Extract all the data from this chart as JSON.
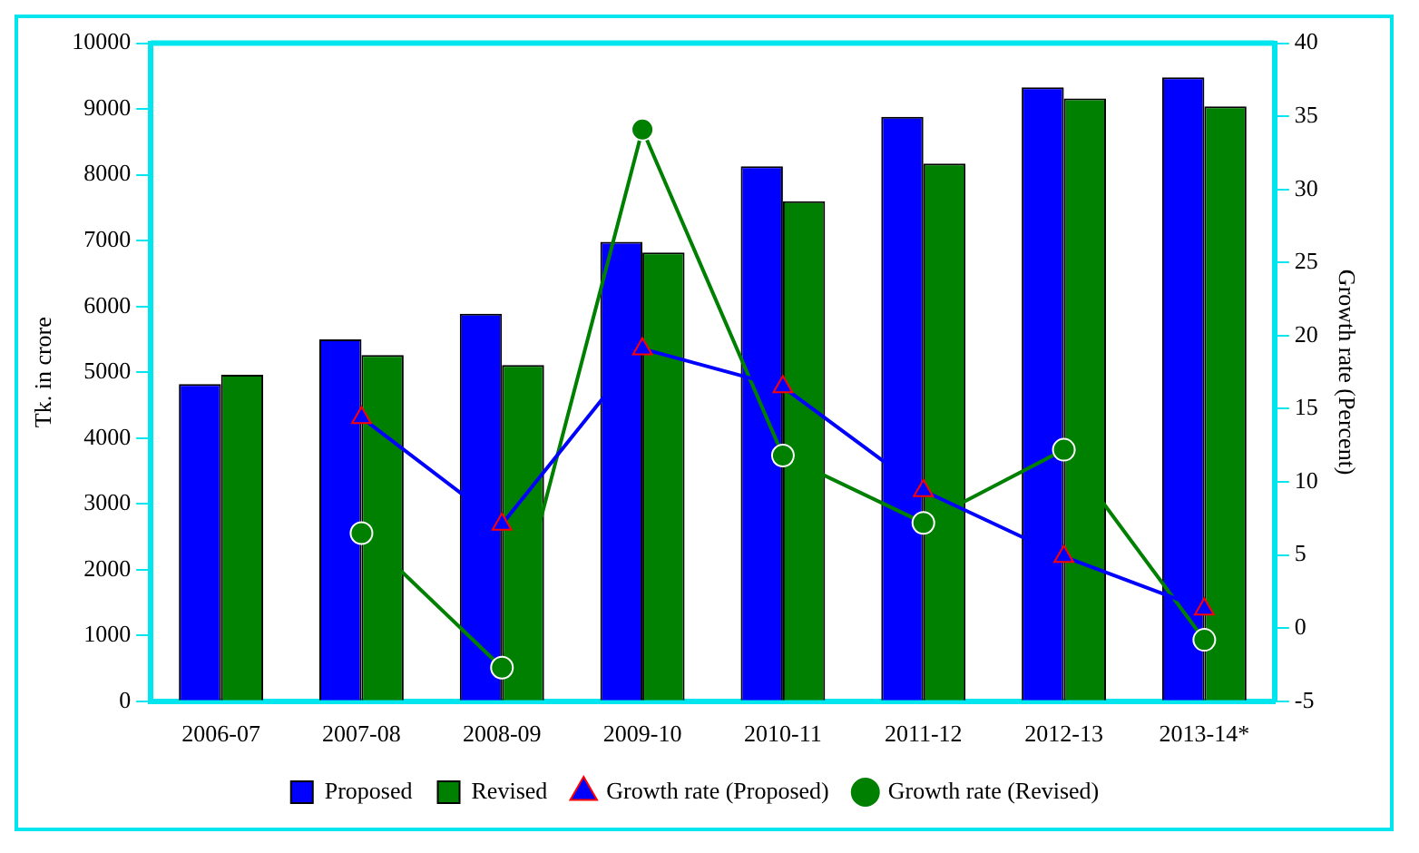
{
  "chart_data": {
    "type": "bar",
    "ylabel": "Tk. in crore",
    "y2label": "Growth rate (Percent)",
    "categories": [
      "2006-07",
      "2007-08",
      "2008-09",
      "2009-10",
      "2010-11",
      "2011-12",
      "2012-13",
      "2013-14*"
    ],
    "series": [
      {
        "name": "Proposed",
        "color": "#0000ff",
        "values": [
          4820,
          5500,
          5890,
          6980,
          8130,
          8880,
          9330,
          9480
        ]
      },
      {
        "name": "Revised",
        "color": "#008000",
        "values": [
          4960,
          5260,
          5110,
          6820,
          7600,
          8170,
          9160,
          9040
        ]
      },
      {
        "name": "Growth rate (Proposed)",
        "type": "line",
        "axis": "y2",
        "color": "#0000ff",
        "marker": "triangle",
        "values": [
          null,
          14.4,
          7.1,
          19.1,
          16.5,
          9.4,
          4.9,
          1.3
        ]
      },
      {
        "name": "Growth rate (Revised)",
        "type": "line",
        "axis": "y2",
        "color": "#008000",
        "marker": "circle",
        "values": [
          null,
          6.5,
          -2.7,
          34.1,
          11.8,
          7.2,
          12.2,
          -0.8
        ]
      }
    ],
    "ylim": [
      0,
      10000
    ],
    "yticks": [
      0,
      1000,
      2000,
      3000,
      4000,
      5000,
      6000,
      7000,
      8000,
      9000,
      10000
    ],
    "y2lim": [
      -5,
      40
    ],
    "y2ticks": [
      -5,
      0,
      5,
      10,
      15,
      20,
      25,
      30,
      35,
      40
    ],
    "grid": false,
    "legend": "bottom"
  }
}
